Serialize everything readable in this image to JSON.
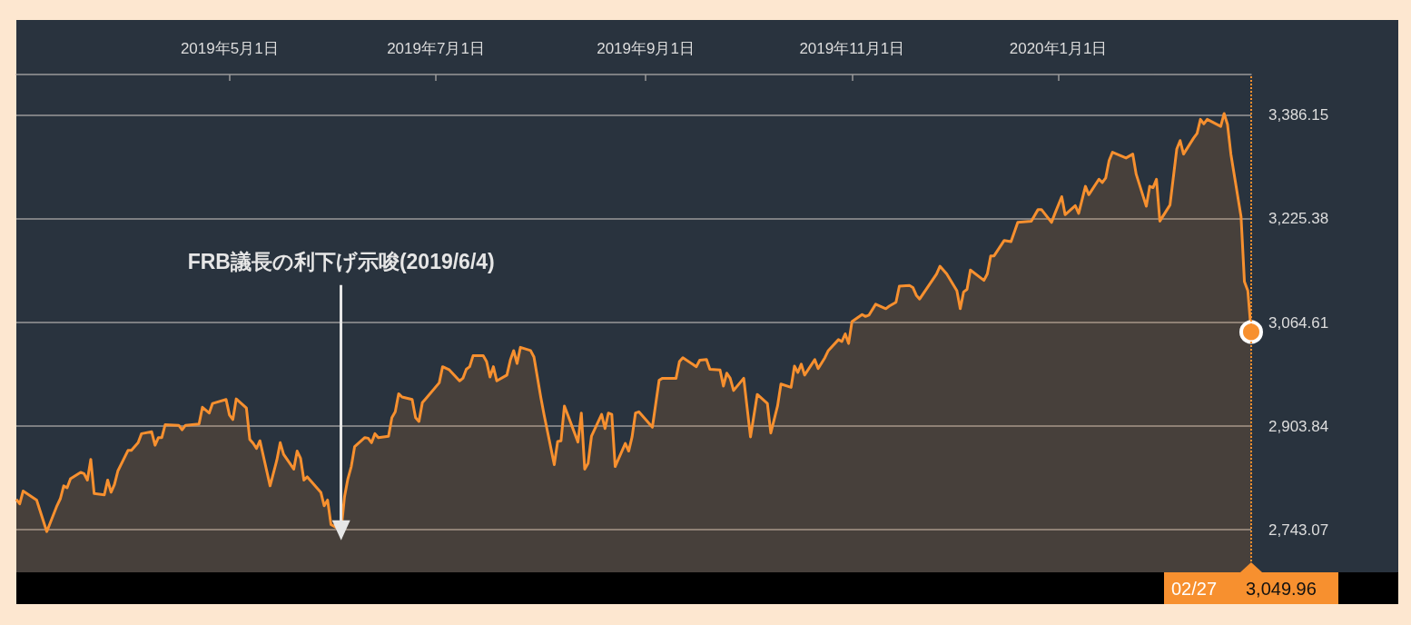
{
  "chart_data": {
    "type": "area",
    "x": [
      "2019-02-27",
      "2019-02-28",
      "2019-03-01",
      "2019-03-05",
      "2019-03-08",
      "2019-03-11",
      "2019-03-12",
      "2019-03-13",
      "2019-03-14",
      "2019-03-15",
      "2019-03-18",
      "2019-03-19",
      "2019-03-20",
      "2019-03-21",
      "2019-03-22",
      "2019-03-25",
      "2019-03-26",
      "2019-03-27",
      "2019-03-28",
      "2019-03-29",
      "2019-04-01",
      "2019-04-02",
      "2019-04-04",
      "2019-04-05",
      "2019-04-08",
      "2019-04-09",
      "2019-04-10",
      "2019-04-11",
      "2019-04-12",
      "2019-04-16",
      "2019-04-17",
      "2019-04-18",
      "2019-04-22",
      "2019-04-23",
      "2019-04-25",
      "2019-04-26",
      "2019-04-30",
      "2019-05-01",
      "2019-05-02",
      "2019-05-03",
      "2019-05-06",
      "2019-05-07",
      "2019-05-08",
      "2019-05-09",
      "2019-05-10",
      "2019-05-13",
      "2019-05-15",
      "2019-05-16",
      "2019-05-17",
      "2019-05-20",
      "2019-05-21",
      "2019-05-22",
      "2019-05-23",
      "2019-05-24",
      "2019-05-28",
      "2019-05-29",
      "2019-05-30",
      "2019-05-31",
      "2019-06-03",
      "2019-06-04",
      "2019-06-05",
      "2019-06-06",
      "2019-06-07",
      "2019-06-10",
      "2019-06-11",
      "2019-06-12",
      "2019-06-13",
      "2019-06-14",
      "2019-06-17",
      "2019-06-18",
      "2019-06-19",
      "2019-06-20",
      "2019-06-21",
      "2019-06-24",
      "2019-06-25",
      "2019-06-26",
      "2019-06-27",
      "2019-06-28",
      "2019-07-02",
      "2019-07-03",
      "2019-07-05",
      "2019-07-08",
      "2019-07-09",
      "2019-07-10",
      "2019-07-11",
      "2019-07-12",
      "2019-07-15",
      "2019-07-16",
      "2019-07-17",
      "2019-07-18",
      "2019-07-19",
      "2019-07-22",
      "2019-07-23",
      "2019-07-24",
      "2019-07-25",
      "2019-07-26",
      "2019-07-29",
      "2019-07-30",
      "2019-08-01",
      "2019-08-02",
      "2019-08-05",
      "2019-08-06",
      "2019-08-07",
      "2019-08-08",
      "2019-08-09",
      "2019-08-12",
      "2019-08-13",
      "2019-08-14",
      "2019-08-15",
      "2019-08-16",
      "2019-08-19",
      "2019-08-20",
      "2019-08-21",
      "2019-08-22",
      "2019-08-23",
      "2019-08-26",
      "2019-08-27",
      "2019-08-28",
      "2019-08-29",
      "2019-08-30",
      "2019-09-03",
      "2019-09-05",
      "2019-09-06",
      "2019-09-10",
      "2019-09-11",
      "2019-09-12",
      "2019-09-16",
      "2019-09-17",
      "2019-09-19",
      "2019-09-20",
      "2019-09-23",
      "2019-09-24",
      "2019-09-25",
      "2019-09-26",
      "2019-09-27",
      "2019-09-30",
      "2019-10-02",
      "2019-10-04",
      "2019-10-07",
      "2019-10-08",
      "2019-10-10",
      "2019-10-11",
      "2019-10-14",
      "2019-10-15",
      "2019-10-16",
      "2019-10-17",
      "2019-10-18",
      "2019-10-21",
      "2019-10-22",
      "2019-10-24",
      "2019-10-25",
      "2019-10-28",
      "2019-10-29",
      "2019-10-30",
      "2019-10-31",
      "2019-11-01",
      "2019-11-04",
      "2019-11-05",
      "2019-11-06",
      "2019-11-08",
      "2019-11-11",
      "2019-11-12",
      "2019-11-14",
      "2019-11-15",
      "2019-11-18",
      "2019-11-19",
      "2019-11-20",
      "2019-11-21",
      "2019-11-26",
      "2019-11-27",
      "2019-11-29",
      "2019-12-02",
      "2019-12-03",
      "2019-12-04",
      "2019-12-05",
      "2019-12-06",
      "2019-12-10",
      "2019-12-11",
      "2019-12-12",
      "2019-12-13",
      "2019-12-16",
      "2019-12-18",
      "2019-12-20",
      "2019-12-24",
      "2019-12-26",
      "2019-12-27",
      "2019-12-30",
      "2019-12-31",
      "2020-01-02",
      "2020-01-03",
      "2020-01-06",
      "2020-01-07",
      "2020-01-09",
      "2020-01-10",
      "2020-01-13",
      "2020-01-14",
      "2020-01-15",
      "2020-01-16",
      "2020-01-17",
      "2020-01-21",
      "2020-01-23",
      "2020-01-24",
      "2020-01-27",
      "2020-01-28",
      "2020-01-29",
      "2020-01-30",
      "2020-01-31",
      "2020-02-03",
      "2020-02-05",
      "2020-02-06",
      "2020-02-07",
      "2020-02-10",
      "2020-02-11",
      "2020-02-12",
      "2020-02-13",
      "2020-02-14",
      "2020-02-18",
      "2020-02-19",
      "2020-02-20",
      "2020-02-21",
      "2020-02-24",
      "2020-02-25",
      "2020-02-26",
      "2020-02-27"
    ],
    "values": [
      2790,
      2783,
      2803,
      2789,
      2740,
      2780,
      2791,
      2811,
      2808,
      2822,
      2832,
      2830,
      2820,
      2852,
      2799,
      2797,
      2820,
      2801,
      2813,
      2834,
      2866,
      2866,
      2878,
      2892,
      2895,
      2874,
      2886,
      2886,
      2906,
      2905,
      2898,
      2905,
      2907,
      2933,
      2924,
      2939,
      2945,
      2921,
      2914,
      2946,
      2932,
      2883,
      2877,
      2869,
      2881,
      2811,
      2851,
      2878,
      2860,
      2837,
      2865,
      2854,
      2820,
      2825,
      2801,
      2780,
      2789,
      2751,
      2742,
      2794,
      2822,
      2841,
      2872,
      2886,
      2885,
      2878,
      2892,
      2886,
      2888,
      2917,
      2926,
      2954,
      2949,
      2945,
      2917,
      2911,
      2940,
      2946,
      2971,
      2996,
      2991,
      2974,
      2978,
      2992,
      2996,
      3013,
      3013,
      3004,
      2980,
      2996,
      2974,
      2983,
      3006,
      3021,
      3001,
      3026,
      3021,
      3011,
      2949,
      2921,
      2844,
      2880,
      2881,
      2935,
      2921,
      2879,
      2924,
      2837,
      2846,
      2888,
      2922,
      2900,
      2924,
      2922,
      2841,
      2877,
      2865,
      2887,
      2924,
      2926,
      2902,
      2975,
      2978,
      2978,
      3004,
      3010,
      2996,
      3006,
      3007,
      2992,
      2991,
      2966,
      2986,
      2978,
      2959,
      2978,
      2887,
      2953,
      2939,
      2893,
      2935,
      2969,
      2964,
      2997,
      2987,
      3000,
      2983,
      3007,
      2993,
      3010,
      3021,
      3038,
      3035,
      3047,
      3032,
      3066,
      3077,
      3074,
      3076,
      3093,
      3086,
      3090,
      3096,
      3121,
      3122,
      3119,
      3107,
      3101,
      3140,
      3152,
      3140,
      3114,
      3086,
      3112,
      3116,
      3146,
      3130,
      3140,
      3168,
      3168,
      3192,
      3190,
      3220,
      3222,
      3240,
      3240,
      3220,
      3234,
      3260,
      3232,
      3246,
      3234,
      3276,
      3263,
      3287,
      3282,
      3289,
      3316,
      3329,
      3320,
      3326,
      3295,
      3245,
      3276,
      3274,
      3287,
      3222,
      3247,
      3334,
      3347,
      3326,
      3351,
      3358,
      3380,
      3373,
      3380,
      3369,
      3389,
      3372,
      3326,
      3229,
      3128,
      3114,
      3049.96
    ],
    "color": "#f7902f",
    "xlim": [
      "2019-02-27",
      "2020-02-27"
    ],
    "xticks": [
      {
        "value": "2019-05-01",
        "label": "2019年5月1日"
      },
      {
        "value": "2019-07-01",
        "label": "2019年7月1日"
      },
      {
        "value": "2019-09-01",
        "label": "2019年9月1日"
      },
      {
        "value": "2019-11-01",
        "label": "2019年11月1日"
      },
      {
        "value": "2020-01-01",
        "label": "2020年1月1日"
      }
    ],
    "ylim": [
      2676.8,
      3449.6
    ],
    "yticks": [
      {
        "value": 2743.07,
        "label": "2,743.07"
      },
      {
        "value": 2903.84,
        "label": "2,903.84"
      },
      {
        "value": 3064.61,
        "label": "3,064.61"
      },
      {
        "value": 3225.38,
        "label": "3,225.38"
      },
      {
        "value": 3386.15,
        "label": "3,386.15"
      }
    ],
    "grid": "y",
    "marker": "none",
    "line_style": "solid",
    "ref_lines": [
      {
        "axis": "x",
        "value": "2020-02-27",
        "color": "#f7902f",
        "line_style": "dotted"
      }
    ],
    "annotations": [
      {
        "text": "FRB議長の利下げ示唆(2019/6/4)",
        "x": "2019-06-03",
        "y": 2742
      },
      "02/27",
      "3,049.96"
    ]
  }
}
